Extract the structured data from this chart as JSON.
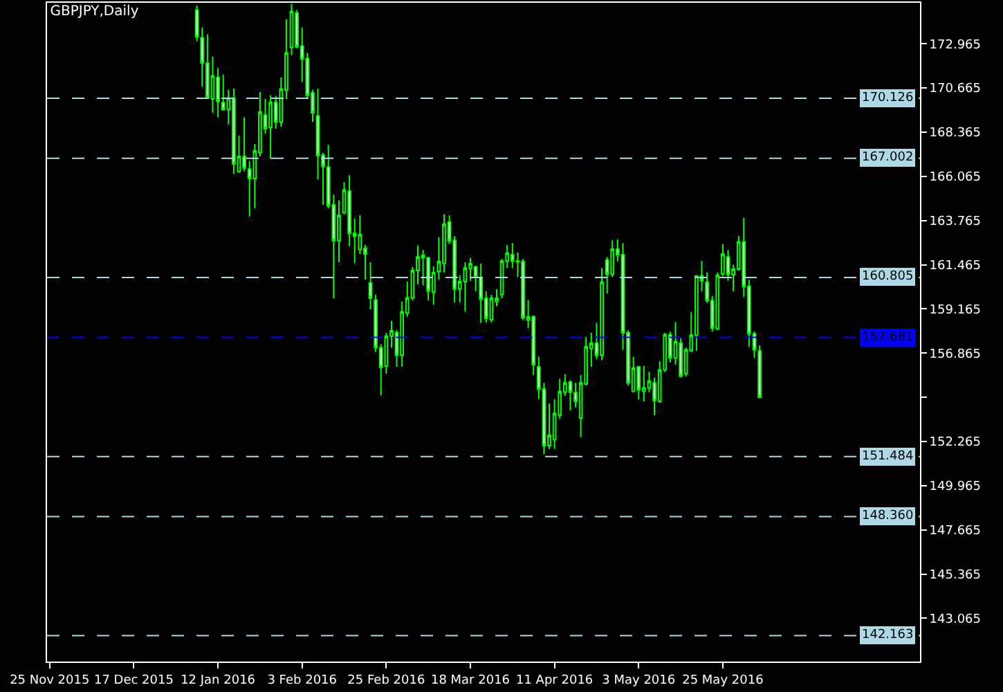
{
  "chart_data": {
    "type": "candlestick",
    "title": "GBPJPY,Daily",
    "categories": [
      "25 Nov 2015",
      null,
      null,
      null,
      null,
      null,
      null,
      null,
      null,
      null,
      null,
      null,
      null,
      null,
      null,
      null,
      "17 Dec 2015",
      null,
      null,
      null,
      null,
      null,
      null,
      null,
      null,
      null,
      null,
      null,
      null,
      null,
      null,
      null,
      "12 Jan 2016",
      null,
      null,
      null,
      null,
      null,
      null,
      null,
      null,
      null,
      null,
      null,
      null,
      null,
      null,
      null,
      "3 Feb 2016",
      null,
      null,
      null,
      null,
      null,
      null,
      null,
      null,
      null,
      null,
      null,
      null,
      null,
      null,
      null,
      "25 Feb 2016",
      null,
      null,
      null,
      null,
      null,
      null,
      null,
      null,
      null,
      null,
      null,
      null,
      null,
      null,
      null,
      "18 Mar 2016",
      null,
      null,
      null,
      null,
      null,
      null,
      null,
      null,
      null,
      null,
      null,
      null,
      null,
      null,
      null,
      "11 Apr 2016",
      null,
      null,
      null,
      null,
      null,
      null,
      null,
      null,
      null,
      null,
      null,
      null,
      null,
      null,
      null,
      "3 May 2016",
      null,
      null,
      null,
      null,
      null,
      null,
      null,
      null,
      null,
      null,
      null,
      null,
      null,
      null,
      null,
      "25 May 2016",
      null,
      null,
      null,
      null,
      null,
      null,
      null,
      null,
      null,
      null,
      null,
      null,
      null,
      null,
      null,
      null,
      null,
      null,
      null,
      null,
      null,
      null,
      null,
      null,
      null,
      null,
      null,
      null,
      null,
      null,
      null,
      null,
      null,
      null,
      null,
      null,
      null
    ],
    "ohlc": [
      null,
      null,
      null,
      null,
      null,
      null,
      null,
      null,
      null,
      null,
      null,
      null,
      null,
      null,
      null,
      null,
      null,
      null,
      null,
      null,
      null,
      null,
      null,
      null,
      null,
      null,
      null,
      null,
      [
        174.72,
        174.96,
        173.09,
        173.32
      ],
      [
        173.28,
        173.81,
        170.74,
        171.96
      ],
      [
        171.96,
        173.45,
        170.1,
        170.16
      ],
      [
        170.09,
        172.3,
        169.37,
        171.29
      ],
      [
        171.22,
        171.7,
        169.14,
        169.97
      ],
      [
        169.9,
        171.36,
        169.49,
        169.54
      ],
      [
        169.54,
        170.57,
        168.77,
        170.14
      ],
      [
        170.14,
        170.64,
        166.19,
        166.71
      ],
      [
        166.31,
        168.18,
        166.26,
        167.1
      ],
      [
        167.1,
        169.14,
        166.33,
        166.5
      ],
      [
        166.45,
        166.86,
        163.98,
        165.95
      ],
      [
        165.95,
        167.75,
        164.41,
        167.39
      ],
      [
        167.29,
        170.45,
        167.1,
        169.42
      ],
      [
        169.26,
        170.09,
        168.29,
        168.54
      ],
      [
        168.61,
        170.28,
        166.98,
        169.92
      ],
      [
        169.92,
        170.26,
        168.54,
        168.9
      ],
      [
        168.9,
        171.22,
        168.65,
        170.62
      ],
      [
        170.55,
        174.24,
        170.09,
        172.49
      ],
      [
        172.78,
        175.05,
        172.37,
        174.65
      ],
      [
        174.57,
        174.72,
        172.73,
        172.8
      ],
      [
        172.85,
        173.81,
        170.98,
        172.17
      ],
      [
        172.2,
        172.49,
        170.09,
        170.28
      ],
      [
        170.41,
        170.57,
        168.9,
        169.37
      ],
      [
        169.21,
        170.64,
        165.9,
        167.14
      ],
      [
        167.17,
        167.29,
        164.58,
        166.57
      ],
      [
        166.55,
        167.7,
        164.41,
        164.53
      ],
      [
        164.58,
        165.11,
        159.72,
        162.72
      ],
      [
        162.72,
        164.82,
        161.59,
        164.03
      ],
      [
        164.17,
        165.76,
        164.1,
        165.35
      ],
      [
        165.3,
        166.12,
        162.43,
        163.1
      ],
      [
        163.1,
        163.86,
        161.54,
        162.95
      ],
      [
        162.26,
        164.03,
        162.02,
        163.03
      ],
      [
        162.31,
        162.5,
        160.68,
        162.02
      ],
      [
        160.51,
        161.59,
        159.14,
        159.72
      ],
      [
        159.62,
        159.91,
        156.92,
        157.15
      ],
      [
        157.15,
        157.33,
        154.67,
        156.12
      ],
      [
        156.19,
        157.92,
        155.79,
        157.75
      ],
      [
        157.75,
        158.55,
        157.15,
        158.03
      ],
      [
        157.94,
        158.06,
        156.15,
        156.75
      ],
      [
        156.75,
        159.55,
        156.15,
        159.02
      ],
      [
        158.95,
        160.58,
        158.76,
        159.74
      ],
      [
        159.74,
        161.35,
        159.6,
        161.16
      ],
      [
        161.16,
        162.47,
        160.44,
        161.87
      ],
      [
        161.95,
        162.23,
        160.39,
        161.83
      ],
      [
        161.83,
        161.87,
        159.6,
        160.1
      ],
      [
        160.03,
        161.39,
        159.38,
        161.06
      ],
      [
        161.11,
        162.9,
        160.68,
        161.63
      ],
      [
        161.54,
        164.1,
        161.06,
        163.57
      ],
      [
        163.69,
        164.03,
        162.54,
        162.69
      ],
      [
        162.74,
        162.95,
        159.5,
        160.2
      ],
      [
        160.2,
        160.92,
        159.5,
        160.58
      ],
      [
        160.58,
        161.59,
        159.02,
        161.3
      ],
      [
        161.28,
        161.83,
        160.63,
        161.52
      ],
      [
        161.35,
        161.42,
        160.08,
        160.8
      ],
      [
        160.8,
        161.52,
        158.43,
        159.67
      ],
      [
        159.72,
        160.08,
        158.45,
        158.67
      ],
      [
        158.6,
        159.9,
        158.45,
        159.72
      ],
      [
        159.55,
        160.2,
        159.31,
        159.72
      ],
      [
        159.91,
        161.76,
        159.72,
        161.66
      ],
      [
        161.66,
        162.5,
        161.3,
        162.07
      ],
      [
        161.99,
        162.59,
        161.3,
        161.66
      ],
      [
        161.66,
        162.11,
        160.82,
        161.63
      ],
      [
        161.63,
        161.76,
        158.59,
        158.71
      ],
      [
        158.59,
        159.62,
        158.16,
        158.76
      ],
      [
        158.76,
        158.83,
        155.72,
        156.25
      ],
      [
        156.15,
        156.68,
        154.47,
        154.99
      ],
      [
        154.99,
        155.32,
        151.6,
        152.05
      ],
      [
        152.05,
        154.24,
        151.88,
        152.59
      ],
      [
        152.35,
        154.47,
        151.88,
        153.72
      ],
      [
        153.63,
        155.53,
        153.44,
        154.87
      ],
      [
        154.83,
        155.77,
        154.64,
        155.32
      ],
      [
        155.36,
        155.43,
        153.88,
        154.83
      ],
      [
        154.81,
        155.32,
        154.04,
        154.35
      ],
      [
        153.49,
        155.72,
        152.48,
        155.32
      ],
      [
        155.25,
        157.71,
        155.19,
        157.2
      ],
      [
        157.11,
        157.92,
        156.15,
        157.39
      ],
      [
        157.39,
        158.43,
        156.55,
        156.75
      ],
      [
        156.75,
        161.3,
        156.5,
        160.56
      ],
      [
        161.71,
        161.87,
        159.96,
        160.96
      ],
      [
        160.96,
        162.74,
        160.82,
        162.28
      ],
      [
        162.28,
        162.78,
        161.64,
        161.99
      ],
      [
        161.99,
        162.59,
        157.04,
        157.92
      ],
      [
        157.92,
        158.06,
        155.19,
        155.32
      ],
      [
        154.88,
        156.68,
        154.85,
        156.09
      ],
      [
        156.15,
        156.2,
        154.45,
        154.95
      ],
      [
        154.88,
        156.2,
        154.35,
        155.06
      ],
      [
        155.06,
        155.89,
        154.83,
        155.41
      ],
      [
        155.32,
        155.6,
        153.63,
        154.4
      ],
      [
        154.35,
        156.44,
        154.28,
        155.99
      ],
      [
        155.99,
        157.92,
        155.9,
        157.83
      ],
      [
        157.83,
        157.99,
        156.37,
        156.61
      ],
      [
        156.61,
        158.48,
        156.27,
        157.47
      ],
      [
        157.39,
        157.63,
        155.6,
        155.67
      ],
      [
        155.79,
        157.15,
        155.64,
        157.04
      ],
      [
        156.99,
        159.0,
        156.92,
        157.8
      ],
      [
        157.8,
        160.92,
        156.99,
        160.87
      ],
      [
        160.87,
        161.66,
        160.08,
        160.63
      ],
      [
        160.56,
        161.06,
        159.48,
        159.6
      ],
      [
        159.6,
        159.84,
        157.99,
        158.16
      ],
      [
        158.12,
        161.06,
        158.07,
        160.92
      ],
      [
        160.99,
        162.54,
        160.87,
        162.02
      ],
      [
        161.87,
        162.23,
        160.63,
        160.94
      ],
      [
        160.94,
        161.47,
        160.08,
        161.23
      ],
      [
        161.23,
        162.97,
        161.16,
        162.66
      ],
      [
        162.66,
        163.91,
        159.79,
        160.32
      ],
      [
        160.34,
        160.68,
        157.2,
        157.87
      ],
      [
        157.87,
        157.99,
        156.61,
        157.04
      ],
      [
        156.97,
        157.27,
        154.57,
        154.57
      ],
      null,
      null,
      null,
      null,
      null,
      null,
      null,
      null,
      null,
      null,
      null,
      null,
      null,
      null,
      null,
      null,
      null,
      null,
      null,
      null,
      null,
      null,
      null,
      null,
      null,
      null,
      null,
      null,
      null,
      null
    ],
    "color": "#00ff00",
    "ylim": [
      140.81,
      175.1
    ],
    "yticks": [
      143.065,
      145.365,
      147.665,
      149.965,
      152.265,
      {
        "value": 154.565,
        "label": null
      },
      156.865,
      159.165,
      161.465,
      163.765,
      166.065,
      168.365,
      170.665,
      172.965
    ],
    "ref_lines": [
      {
        "axis": "y",
        "value": 170.126,
        "label": "170.126",
        "color": "#add8e6",
        "line_style": "dashed"
      },
      {
        "axis": "y",
        "value": 167.002,
        "label": "167.002",
        "color": "#add8e6",
        "line_style": "dashed"
      },
      {
        "axis": "y",
        "value": 160.805,
        "label": "160.805",
        "color": "#add8e6",
        "line_style": "dashed"
      },
      {
        "axis": "y",
        "value": 157.681,
        "label": "157.681",
        "color": "#0000ff",
        "line_style": "dashed"
      },
      {
        "axis": "y",
        "value": 151.484,
        "label": "151.484",
        "color": "#add8e6",
        "line_style": "dashed"
      },
      {
        "axis": "y",
        "value": 148.36,
        "label": "148.360",
        "color": "#add8e6",
        "line_style": "dashed"
      },
      {
        "axis": "y",
        "value": 142.163,
        "label": "142.163",
        "color": "#add8e6",
        "line_style": "dashed"
      }
    ]
  }
}
